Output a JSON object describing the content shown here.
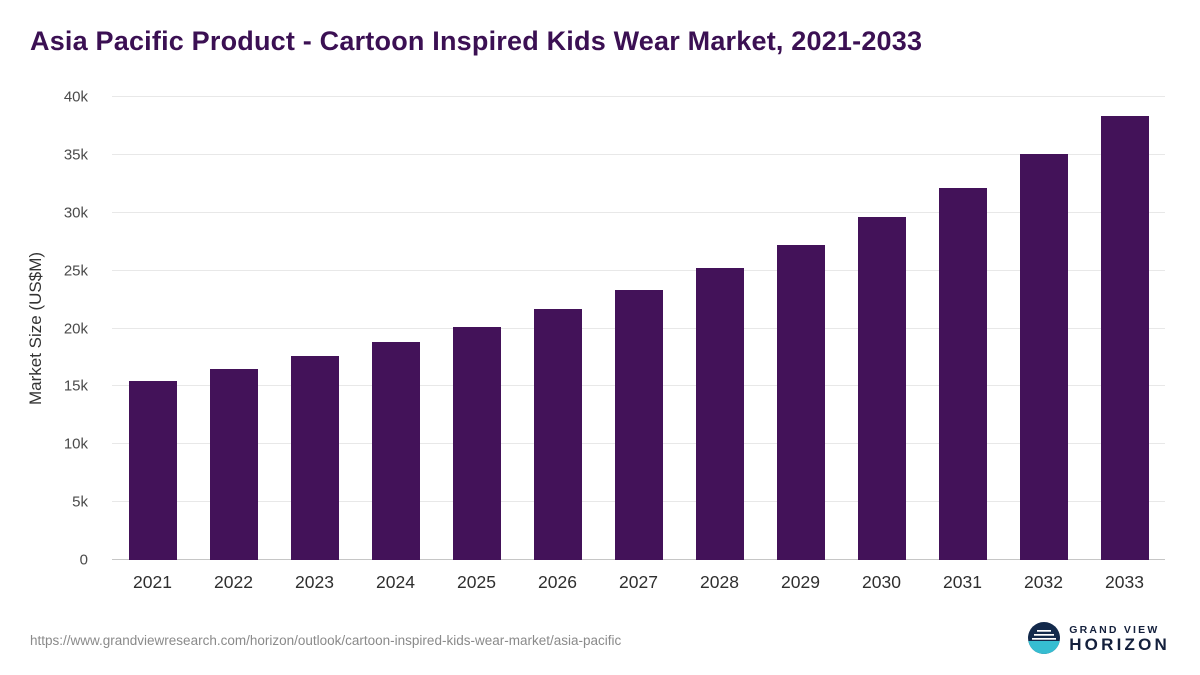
{
  "title": "Asia Pacific Product - Cartoon Inspired Kids Wear Market, 2021-2033",
  "chart_data": {
    "type": "bar",
    "title": "Asia Pacific Product - Cartoon Inspired Kids Wear Market, 2021-2033",
    "categories": [
      "2021",
      "2022",
      "2023",
      "2024",
      "2025",
      "2026",
      "2027",
      "2028",
      "2029",
      "2030",
      "2031",
      "2032",
      "2033"
    ],
    "values": [
      15500,
      16500,
      17600,
      18800,
      20100,
      21700,
      23300,
      25200,
      27200,
      29600,
      32100,
      35100,
      38400
    ],
    "xlabel": "",
    "ylabel": "Market Size (US$M)",
    "ylim": [
      0,
      40000
    ],
    "yticks": [
      0,
      5000,
      10000,
      15000,
      20000,
      25000,
      30000,
      35000,
      40000
    ],
    "ytick_labels": [
      "0",
      "5k",
      "10k",
      "15k",
      "20k",
      "25k",
      "30k",
      "35k",
      "40k"
    ],
    "grid": true,
    "legend": "none",
    "bar_color": "#431259"
  },
  "colors": {
    "title": "#3b1053",
    "bar": "#431259",
    "gridline": "#e8e8e8",
    "axis_text": "#4a4a4a",
    "logo_navy": "#13294b",
    "logo_teal": "#36bdd1"
  },
  "footer": {
    "source_url": "https://www.grandviewresearch.com/horizon/outlook/cartoon-inspired-kids-wear-market/asia-pacific",
    "logo_line1": "GRAND VIEW",
    "logo_line2": "HORIZON"
  }
}
